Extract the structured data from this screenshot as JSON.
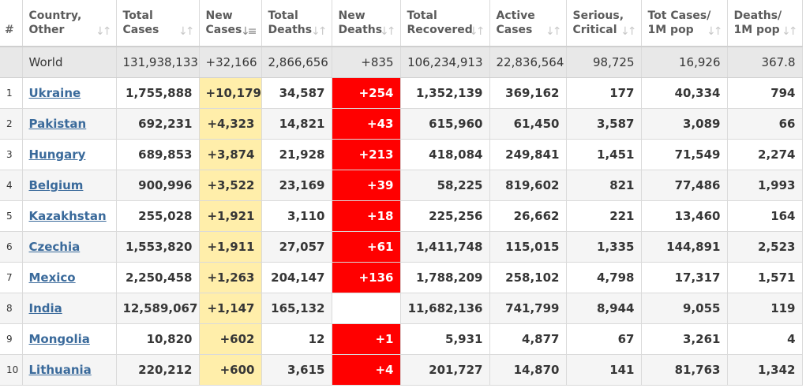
{
  "headers": [
    {
      "key": "rank",
      "line1": "#",
      "line2": ""
    },
    {
      "key": "country",
      "line1": "Country,",
      "line2": "Other"
    },
    {
      "key": "total_cases",
      "line1": "Total",
      "line2": "Cases"
    },
    {
      "key": "new_cases",
      "line1": "New",
      "line2": "Cases"
    },
    {
      "key": "total_deaths",
      "line1": "Total",
      "line2": "Deaths"
    },
    {
      "key": "new_deaths",
      "line1": "New",
      "line2": "Deaths"
    },
    {
      "key": "total_recovered",
      "line1": "Total",
      "line2": "Recovered"
    },
    {
      "key": "active_cases",
      "line1": "Active",
      "line2": "Cases"
    },
    {
      "key": "serious_critical",
      "line1": "Serious,",
      "line2": "Critical"
    },
    {
      "key": "cases_per_1m",
      "line1": "Tot Cases/",
      "line2": "1M pop"
    },
    {
      "key": "deaths_per_1m",
      "line1": "Deaths/",
      "line2": "1M pop"
    }
  ],
  "sort": {
    "default_glyph": "↓↑",
    "active_glyph": "↓≡"
  },
  "world": {
    "country": "World",
    "total_cases": "131,938,133",
    "new_cases": "+32,166",
    "total_deaths": "2,866,656",
    "new_deaths": "+835",
    "total_recovered": "106,234,913",
    "active_cases": "22,836,564",
    "serious_critical": "98,725",
    "cases_per_1m": "16,926",
    "deaths_per_1m": "367.8"
  },
  "rows": [
    {
      "rank": "1",
      "country": "Ukraine",
      "total_cases": "1,755,888",
      "new_cases": "+10,179",
      "total_deaths": "34,587",
      "new_deaths": "+254",
      "total_recovered": "1,352,139",
      "active_cases": "369,162",
      "serious_critical": "177",
      "cases_per_1m": "40,334",
      "deaths_per_1m": "794"
    },
    {
      "rank": "2",
      "country": "Pakistan",
      "total_cases": "692,231",
      "new_cases": "+4,323",
      "total_deaths": "14,821",
      "new_deaths": "+43",
      "total_recovered": "615,960",
      "active_cases": "61,450",
      "serious_critical": "3,587",
      "cases_per_1m": "3,089",
      "deaths_per_1m": "66"
    },
    {
      "rank": "3",
      "country": "Hungary",
      "total_cases": "689,853",
      "new_cases": "+3,874",
      "total_deaths": "21,928",
      "new_deaths": "+213",
      "total_recovered": "418,084",
      "active_cases": "249,841",
      "serious_critical": "1,451",
      "cases_per_1m": "71,549",
      "deaths_per_1m": "2,274"
    },
    {
      "rank": "4",
      "country": "Belgium",
      "total_cases": "900,996",
      "new_cases": "+3,522",
      "total_deaths": "23,169",
      "new_deaths": "+39",
      "total_recovered": "58,225",
      "active_cases": "819,602",
      "serious_critical": "821",
      "cases_per_1m": "77,486",
      "deaths_per_1m": "1,993"
    },
    {
      "rank": "5",
      "country": "Kazakhstan",
      "total_cases": "255,028",
      "new_cases": "+1,921",
      "total_deaths": "3,110",
      "new_deaths": "+18",
      "total_recovered": "225,256",
      "active_cases": "26,662",
      "serious_critical": "221",
      "cases_per_1m": "13,460",
      "deaths_per_1m": "164"
    },
    {
      "rank": "6",
      "country": "Czechia",
      "total_cases": "1,553,820",
      "new_cases": "+1,911",
      "total_deaths": "27,057",
      "new_deaths": "+61",
      "total_recovered": "1,411,748",
      "active_cases": "115,015",
      "serious_critical": "1,335",
      "cases_per_1m": "144,891",
      "deaths_per_1m": "2,523"
    },
    {
      "rank": "7",
      "country": "Mexico",
      "total_cases": "2,250,458",
      "new_cases": "+1,263",
      "total_deaths": "204,147",
      "new_deaths": "+136",
      "total_recovered": "1,788,209",
      "active_cases": "258,102",
      "serious_critical": "4,798",
      "cases_per_1m": "17,317",
      "deaths_per_1m": "1,571"
    },
    {
      "rank": "8",
      "country": "India",
      "total_cases": "12,589,067",
      "new_cases": "+1,147",
      "total_deaths": "165,132",
      "new_deaths": "",
      "total_recovered": "11,682,136",
      "active_cases": "741,799",
      "serious_critical": "8,944",
      "cases_per_1m": "9,055",
      "deaths_per_1m": "119"
    },
    {
      "rank": "9",
      "country": "Mongolia",
      "total_cases": "10,820",
      "new_cases": "+602",
      "total_deaths": "12",
      "new_deaths": "+1",
      "total_recovered": "5,931",
      "active_cases": "4,877",
      "serious_critical": "67",
      "cases_per_1m": "3,261",
      "deaths_per_1m": "4"
    },
    {
      "rank": "10",
      "country": "Lithuania",
      "total_cases": "220,212",
      "new_cases": "+600",
      "total_deaths": "3,615",
      "new_deaths": "+4",
      "total_recovered": "201,727",
      "active_cases": "14,870",
      "serious_critical": "141",
      "cases_per_1m": "81,763",
      "deaths_per_1m": "1,342"
    }
  ],
  "colors": {
    "new_cases_bg": "#ffeeaa",
    "new_deaths_bg": "#ff0000",
    "world_row_bg": "#e8e8e8",
    "link": "#3a6a9b"
  }
}
